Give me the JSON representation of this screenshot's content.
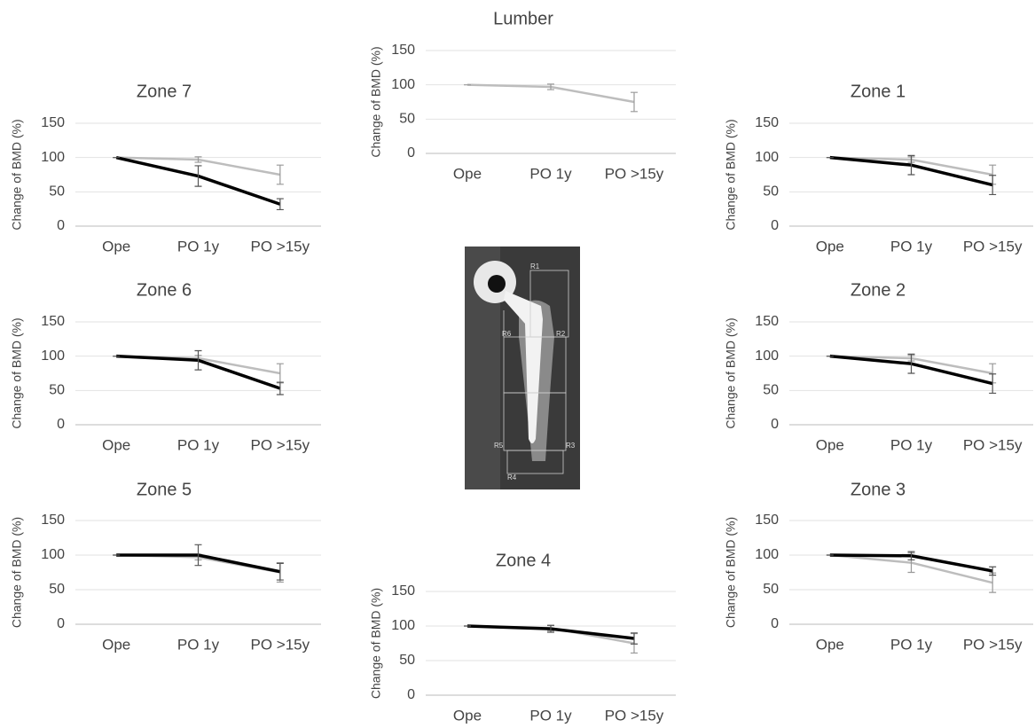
{
  "chart_data": [
    {
      "type": "line",
      "title": "Lumber",
      "ylabel": "Change of BMD (%)",
      "categories": [
        "Ope",
        "PO 1y",
        "PO >15y"
      ],
      "ylim": [
        0,
        150
      ],
      "yticks": [
        0,
        50,
        100,
        150
      ],
      "grid": true,
      "series": [
        {
          "color": "#bdbdbd",
          "values": [
            100,
            97,
            75
          ],
          "errors": [
            0,
            4,
            14
          ]
        }
      ]
    },
    {
      "type": "line",
      "title": "Zone 7",
      "ylabel": "Change of BMD (%)",
      "categories": [
        "Ope",
        "PO 1y",
        "PO >15y"
      ],
      "ylim": [
        0,
        150
      ],
      "yticks": [
        0,
        50,
        100,
        150
      ],
      "grid": true,
      "series": [
        {
          "color": "#bdbdbd",
          "values": [
            100,
            97,
            75
          ],
          "errors": [
            0,
            4,
            14
          ]
        },
        {
          "color": "#000000",
          "values": [
            100,
            73,
            32
          ],
          "errors": [
            0,
            15,
            8
          ]
        }
      ]
    },
    {
      "type": "line",
      "title": "Zone 1",
      "ylabel": "Change of BMD (%)",
      "categories": [
        "Ope",
        "PO 1y",
        "PO >15y"
      ],
      "ylim": [
        0,
        150
      ],
      "yticks": [
        0,
        50,
        100,
        150
      ],
      "grid": true,
      "series": [
        {
          "color": "#bdbdbd",
          "values": [
            100,
            97,
            75
          ],
          "errors": [
            0,
            4,
            14
          ]
        },
        {
          "color": "#000000",
          "values": [
            100,
            89,
            60
          ],
          "errors": [
            0,
            14,
            14
          ]
        }
      ]
    },
    {
      "type": "line",
      "title": "Zone 6",
      "ylabel": "Change of BMD (%)",
      "categories": [
        "Ope",
        "PO 1y",
        "PO >15y"
      ],
      "ylim": [
        0,
        150
      ],
      "yticks": [
        0,
        50,
        100,
        150
      ],
      "grid": true,
      "series": [
        {
          "color": "#bdbdbd",
          "values": [
            100,
            97,
            75
          ],
          "errors": [
            0,
            4,
            14
          ]
        },
        {
          "color": "#000000",
          "values": [
            100,
            94,
            53
          ],
          "errors": [
            0,
            14,
            9
          ]
        }
      ]
    },
    {
      "type": "line",
      "title": "Zone 2",
      "ylabel": "Change of BMD (%)",
      "categories": [
        "Ope",
        "PO 1y",
        "PO >15y"
      ],
      "ylim": [
        0,
        150
      ],
      "yticks": [
        0,
        50,
        100,
        150
      ],
      "grid": true,
      "series": [
        {
          "color": "#bdbdbd",
          "values": [
            100,
            97,
            75
          ],
          "errors": [
            0,
            4,
            14
          ]
        },
        {
          "color": "#000000",
          "values": [
            100,
            89,
            60
          ],
          "errors": [
            0,
            14,
            14
          ]
        }
      ]
    },
    {
      "type": "line",
      "title": "Zone 5",
      "ylabel": "Change of BMD (%)",
      "categories": [
        "Ope",
        "PO 1y",
        "PO >15y"
      ],
      "ylim": [
        0,
        150
      ],
      "yticks": [
        0,
        50,
        100,
        150
      ],
      "grid": true,
      "series": [
        {
          "color": "#bdbdbd",
          "values": [
            100,
            97,
            75
          ],
          "errors": [
            0,
            4,
            14
          ]
        },
        {
          "color": "#000000",
          "values": [
            100,
            100,
            76
          ],
          "errors": [
            0,
            15,
            12
          ]
        }
      ]
    },
    {
      "type": "line",
      "title": "Zone 3",
      "ylabel": "Change of BMD (%)",
      "categories": [
        "Ope",
        "PO 1y",
        "PO >15y"
      ],
      "ylim": [
        0,
        150
      ],
      "yticks": [
        0,
        50,
        100,
        150
      ],
      "grid": true,
      "series": [
        {
          "color": "#bdbdbd",
          "values": [
            100,
            89,
            60
          ],
          "errors": [
            0,
            14,
            14
          ]
        },
        {
          "color": "#000000",
          "values": [
            100,
            99,
            77
          ],
          "errors": [
            0,
            6,
            6
          ]
        }
      ]
    },
    {
      "type": "line",
      "title": "Zone 4",
      "ylabel": "Change of BMD (%)",
      "categories": [
        "Ope",
        "PO 1y",
        "PO >15y"
      ],
      "ylim": [
        0,
        150
      ],
      "yticks": [
        0,
        50,
        100,
        150
      ],
      "grid": true,
      "series": [
        {
          "color": "#bdbdbd",
          "values": [
            100,
            97,
            75
          ],
          "errors": [
            0,
            4,
            14
          ]
        },
        {
          "color": "#000000",
          "values": [
            100,
            96,
            82
          ],
          "errors": [
            0,
            5,
            8
          ]
        }
      ]
    }
  ],
  "xray": {
    "labels": [
      "R1",
      "R2",
      "R3",
      "R4",
      "R5",
      "R6"
    ]
  }
}
